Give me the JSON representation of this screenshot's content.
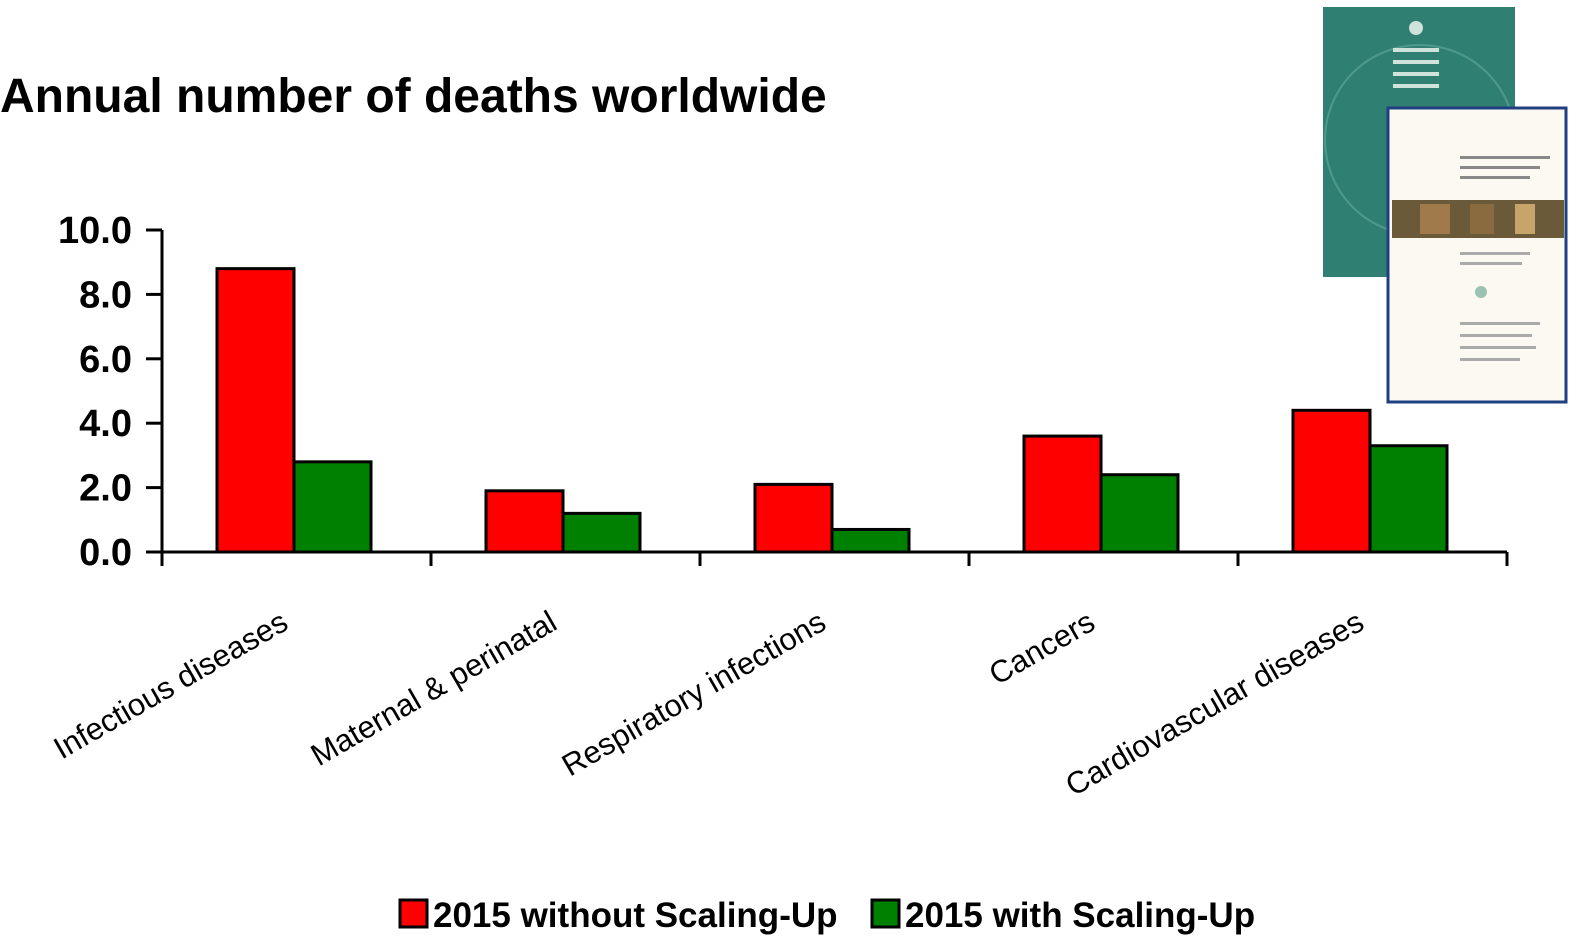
{
  "colors": {
    "series_without": "#ff0000",
    "series_with": "#008000",
    "report_cover_teal": "#2f7f73",
    "report_border": "#1f3f80"
  },
  "inset_images": [
    "world-health-report-2000-cover",
    "macroeconomics-and-health-report-cover"
  ],
  "chart_data": {
    "type": "bar",
    "title": "Annual number of deaths worldwide",
    "xlabel": "",
    "ylabel": "",
    "ylim": [
      0,
      10
    ],
    "yticks": [
      "0.0",
      "2.0",
      "4.0",
      "6.0",
      "8.0",
      "10.0"
    ],
    "grid": false,
    "legend_position": "bottom",
    "categories": [
      "Infectious diseases",
      "Maternal & perinatal",
      "Respiratory infections",
      "Cancers",
      "Cardiovascular diseases"
    ],
    "series": [
      {
        "name": "2015 without Scaling-Up",
        "color": "#ff0000",
        "values": [
          8.8,
          1.9,
          2.1,
          3.6,
          4.4
        ]
      },
      {
        "name": "2015 with Scaling-Up",
        "color": "#008000",
        "values": [
          2.8,
          1.2,
          0.7,
          2.4,
          3.3
        ]
      }
    ]
  }
}
